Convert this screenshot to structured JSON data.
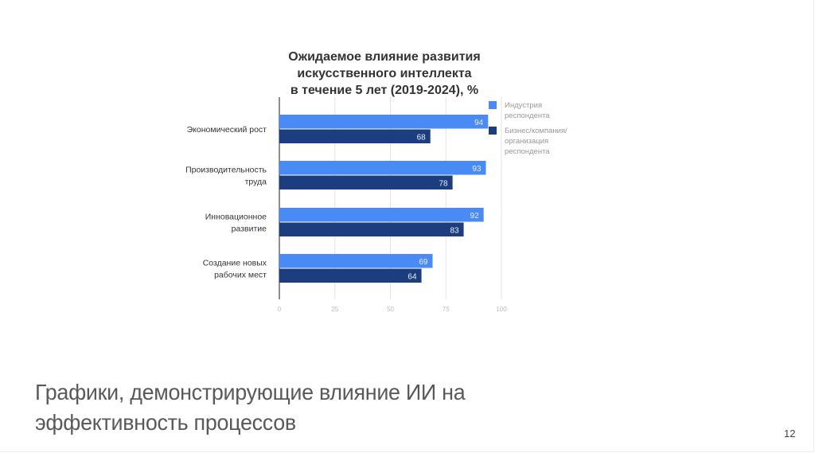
{
  "chart_data": {
    "type": "bar",
    "orientation": "horizontal",
    "title": [
      "Ожидаемое влияние развития",
      "искусственного интеллекта",
      "в течение 5 лет (2019-2024), %"
    ],
    "categories": [
      [
        "Экономический рост"
      ],
      [
        "Производительность",
        "труда"
      ],
      [
        "Инновационное",
        "развитие"
      ],
      [
        "Создание новых",
        "рабочих мест"
      ]
    ],
    "series": [
      {
        "name": [
          "Индустрия",
          "респондента"
        ],
        "color": "#4a8af4",
        "values": [
          94,
          93,
          92,
          69
        ]
      },
      {
        "name": [
          "Бизнес/компания/",
          "организация",
          "респондента"
        ],
        "color": "#1c3e7e",
        "values": [
          68,
          78,
          83,
          64
        ]
      }
    ],
    "xlim": [
      0,
      100
    ],
    "xticks": [
      0,
      25,
      50,
      75,
      100
    ],
    "grid": true,
    "data_labels": true,
    "legend": "right"
  },
  "slide": {
    "caption_lines": [
      "Графики, демонстрирующие влияние ИИ на",
      "эффективность процессов"
    ],
    "page_number": "12"
  }
}
